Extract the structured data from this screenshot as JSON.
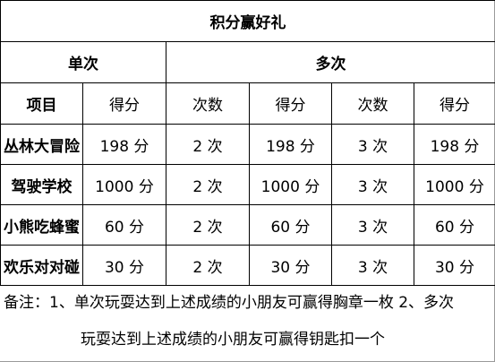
{
  "title": "积分赢好礼",
  "groups": {
    "single": "单次",
    "multi": "多次"
  },
  "headers": [
    "项目",
    "得分",
    "次数",
    "得分",
    "次数",
    "得分"
  ],
  "rows": [
    [
      "丛林大冒险",
      "198 分",
      "2 次",
      "198 分",
      "3 次",
      "198 分"
    ],
    [
      "驾驶学校",
      "1000 分",
      "2 次",
      "1000 分",
      "3 次",
      "1000 分"
    ],
    [
      "小熊吃蜂蜜",
      "60 分",
      "2 次",
      "60 分",
      "3 次",
      "60 分"
    ],
    [
      "欢乐对对碰",
      "30 分",
      "2 次",
      "30 分",
      "3 次",
      "30 分"
    ]
  ],
  "note": {
    "line1": "备注：1、单次玩耍达到上述成绩的小朋友可赢得胸章一枚 2、多次",
    "line2": "玩耍达到上述成绩的小朋友可赢得钥匙扣一个"
  }
}
